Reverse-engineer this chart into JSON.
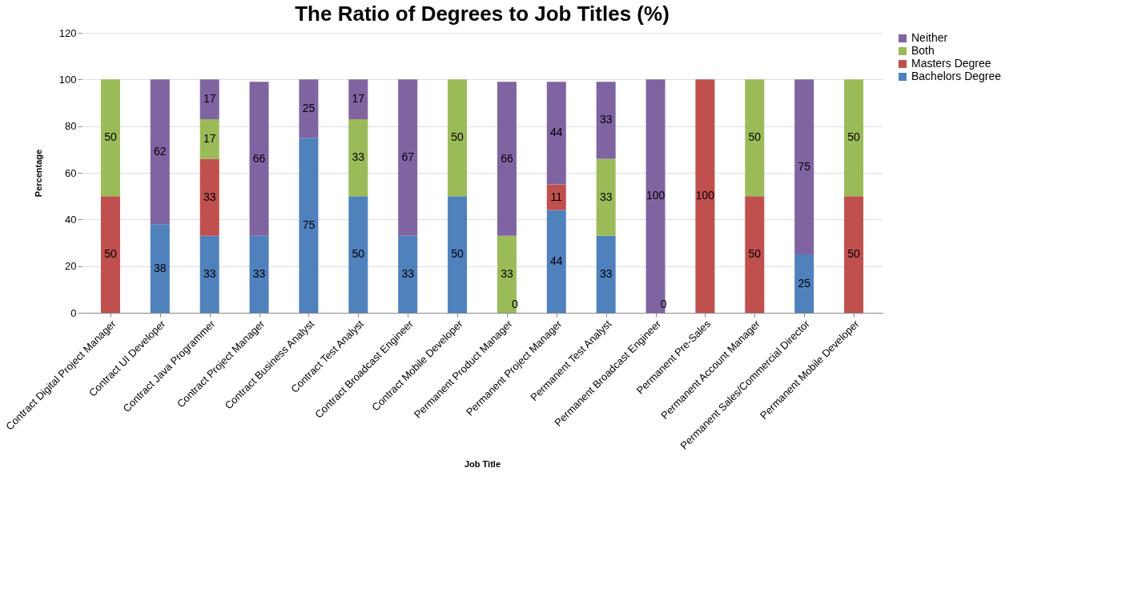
{
  "chart_data": {
    "type": "bar",
    "title": "The Ratio of Degrees to Job Titles (%)",
    "xlabel": "Job Title",
    "ylabel": "Percentage",
    "categories": [
      "Contract Digital Project Manager",
      "Contract UI Developer",
      "Contract Java Programmer",
      "Contract Project Manager",
      "Contract Business Analyst",
      "Contract Test Analyst",
      "Contract Broadcast Engineer",
      "Contract Mobile Developer",
      "Permanent Product Manager",
      "Permanent Project Manager",
      "Permanent Test Analyst",
      "Permanent Broadcast Engineer",
      "Permanent Pre-Sales",
      "Permanent Account Manager",
      "Permanent Sales/Commercial Director",
      "Permanent Mobile Developer"
    ],
    "stacked": true,
    "series": [
      {
        "name": "Bachelors Degree",
        "color": "#4f81bd",
        "values": [
          null,
          38,
          33,
          33,
          75,
          50,
          33,
          50,
          null,
          44,
          33,
          null,
          null,
          null,
          25,
          null
        ]
      },
      {
        "name": "Masters Degree",
        "color": "#c0504d",
        "values": [
          50,
          null,
          33,
          null,
          null,
          null,
          null,
          null,
          null,
          11,
          null,
          null,
          100,
          50,
          null,
          50
        ]
      },
      {
        "name": "Both",
        "color": "#9bbb59",
        "values": [
          50,
          null,
          17,
          null,
          null,
          33,
          null,
          50,
          33,
          null,
          33,
          null,
          null,
          50,
          null,
          50
        ]
      },
      {
        "name": "Neither",
        "color": "#8064a2",
        "values": [
          null,
          62,
          17,
          66,
          25,
          17,
          67,
          null,
          66,
          44,
          33,
          100,
          null,
          null,
          75,
          null
        ]
      }
    ],
    "data_labels": true,
    "annotations": [
      {
        "text": "0",
        "x": "Permanent Product Manager",
        "y": 0
      },
      {
        "text": "0",
        "x": "Permanent Broadcast Engineer",
        "y": 0
      }
    ],
    "ylim": [
      0,
      120
    ],
    "yticks": [
      0,
      20,
      40,
      60,
      80,
      100,
      120
    ],
    "grid": "y",
    "legend": "right"
  }
}
